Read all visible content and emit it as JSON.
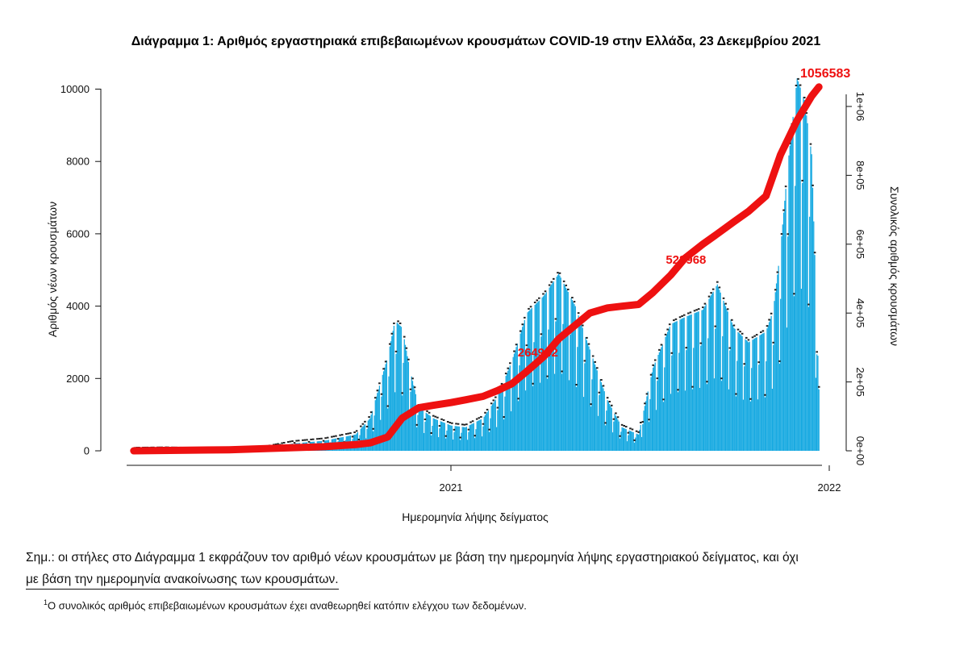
{
  "chart_data": {
    "type": "bar",
    "title": "Διάγραμμα 1: Αριθμός εργαστηριακά επιβεβαιωμένων κρουσμάτων COVID-19 στην Ελλάδα, 23 Δεκεμβρίου 2021",
    "xlabel": "Ημερομηνία λήψης δείγματος",
    "ylabel": "Αριθμός νέων κρουσμάτων",
    "y2label": "Συνολικός αριθμός κρουσμάτων",
    "x_ticks": [
      "2021",
      "2022"
    ],
    "y_ticks": [
      "0",
      "2000",
      "4000",
      "6000",
      "8000",
      "10000"
    ],
    "y2_ticks": [
      "0e+00",
      "2e+05",
      "4e+05",
      "6e+05",
      "8e+05",
      "1e+06"
    ],
    "ylim": [
      0,
      10500
    ],
    "y2lim": [
      0,
      1100000
    ],
    "grid": false,
    "colors": {
      "bars": "#16a9e1",
      "cumulative": "#ee1111",
      "labels": "#222222"
    },
    "daily_cases": {
      "name": "",
      "x": [
        "2020-03-01",
        "2020-04-01",
        "2020-05-01",
        "2020-06-01",
        "2020-07-01",
        "2020-08-01",
        "2020-09-01",
        "2020-10-01",
        "2020-10-15",
        "2020-11-01",
        "2020-11-08",
        "2020-11-15",
        "2020-11-22",
        "2020-12-01",
        "2020-12-15",
        "2021-01-01",
        "2021-01-15",
        "2021-02-01",
        "2021-02-15",
        "2021-03-01",
        "2021-03-15",
        "2021-04-01",
        "2021-04-15",
        "2021-05-01",
        "2021-05-15",
        "2021-06-01",
        "2021-06-15",
        "2021-07-01",
        "2021-07-15",
        "2021-08-01",
        "2021-08-15",
        "2021-09-01",
        "2021-09-15",
        "2021-10-01",
        "2021-10-15",
        "2021-11-01",
        "2021-11-08",
        "2021-11-15",
        "2021-11-22",
        "2021-12-01",
        "2021-12-08",
        "2021-12-15",
        "2021-12-22"
      ],
      "values": [
        20,
        30,
        15,
        10,
        30,
        200,
        280,
        450,
        900,
        2600,
        3600,
        3400,
        2300,
        1200,
        900,
        700,
        650,
        900,
        1500,
        2500,
        3800,
        4300,
        4900,
        4000,
        2800,
        1400,
        650,
        450,
        2300,
        3500,
        3700,
        3900,
        4600,
        3400,
        3000,
        3300,
        3900,
        5600,
        7900,
        10300,
        9700,
        8200,
        1700
      ]
    },
    "cumulative": {
      "name": "",
      "x": [
        "2020-03-01",
        "2020-06-01",
        "2020-09-01",
        "2020-10-01",
        "2020-10-15",
        "2020-11-01",
        "2020-11-15",
        "2020-12-01",
        "2020-12-15",
        "2021-01-01",
        "2021-01-15",
        "2021-02-01",
        "2021-02-15",
        "2021-03-01",
        "2021-03-15",
        "2021-04-01",
        "2021-04-15",
        "2021-05-01",
        "2021-05-15",
        "2021-06-01",
        "2021-06-15",
        "2021-07-01",
        "2021-07-15",
        "2021-08-01",
        "2021-08-15",
        "2021-09-01",
        "2021-09-15",
        "2021-10-01",
        "2021-10-15",
        "2021-11-01",
        "2021-11-15",
        "2021-12-01",
        "2021-12-15",
        "2021-12-22"
      ],
      "values": [
        0,
        3000,
        12000,
        18000,
        23000,
        40000,
        95000,
        125000,
        132000,
        140000,
        148000,
        158000,
        175000,
        195000,
        230000,
        275000,
        325000,
        365000,
        400000,
        415000,
        420000,
        425000,
        460000,
        510000,
        560000,
        600000,
        630000,
        665000,
        695000,
        740000,
        860000,
        960000,
        1030000,
        1056583
      ]
    },
    "annotations": [
      {
        "label": "264942",
        "x": "2021-03-29",
        "y": 264942
      },
      {
        "label": "528968",
        "x": "2021-08-22",
        "y": 528968
      },
      {
        "label": "1056583",
        "x": "2021-12-22",
        "y": 1056583
      }
    ]
  },
  "note": {
    "line1": "Σημ.:  οι στήλες στο Διάγραμμα 1 εκφράζουν τον αριθμό νέων κρουσμάτων με βάση την ημερομηνία λήψης εργαστηριακού δείγματος, και όχι",
    "line2": "με βάση την ημερομηνία ανακοίνωσης των κρουσμάτων."
  },
  "footnote": {
    "marker": "1",
    "text": "Ο συνολικός αριθμός επιβεβαιωμένων κρουσμάτων έχει αναθεωρηθεί κατόπιν ελέγχου των δεδομένων."
  }
}
